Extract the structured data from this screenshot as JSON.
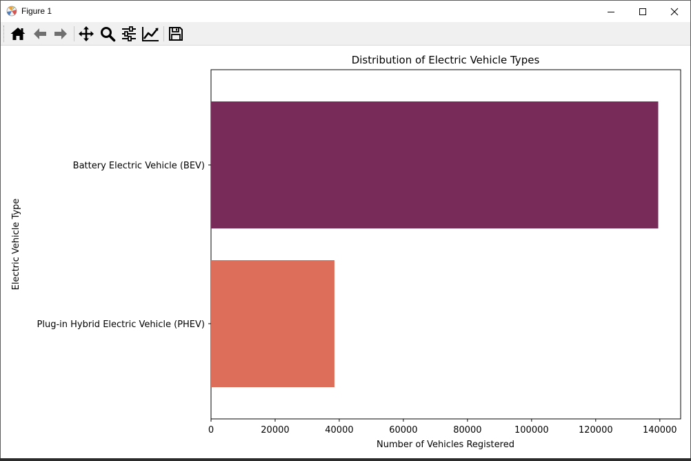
{
  "window": {
    "title": "Figure 1",
    "icon": "matplotlib-logo-icon",
    "controls": [
      "minimize-icon",
      "maximize-icon",
      "close-icon"
    ]
  },
  "toolbar": {
    "buttons": [
      {
        "name": "home",
        "icon": "home-icon"
      },
      {
        "name": "back",
        "icon": "arrow-left-icon"
      },
      {
        "name": "forward",
        "icon": "arrow-right-icon"
      },
      {
        "name": "pan",
        "icon": "move-icon"
      },
      {
        "name": "zoom",
        "icon": "magnifier-icon"
      },
      {
        "name": "subplots",
        "icon": "sliders-icon"
      },
      {
        "name": "edit-axis",
        "icon": "line-chart-icon"
      },
      {
        "name": "save",
        "icon": "floppy-disk-icon"
      }
    ]
  },
  "chart_data": {
    "type": "bar",
    "orientation": "horizontal",
    "title": "Distribution of Electric Vehicle Types",
    "xlabel": "Number of Vehicles Registered",
    "ylabel": "Electric Vehicle Type",
    "categories": [
      "Battery Electric Vehicle (BEV)",
      "Plug-in Hybrid Electric Vehicle (PHEV)"
    ],
    "values": [
      139500,
      38500
    ],
    "colors": [
      "#782b59",
      "#dd6f5a"
    ],
    "xlim": [
      0,
      146500
    ],
    "xticks": [
      0,
      20000,
      40000,
      60000,
      80000,
      100000,
      120000,
      140000
    ],
    "grid": false,
    "legend": "none"
  }
}
